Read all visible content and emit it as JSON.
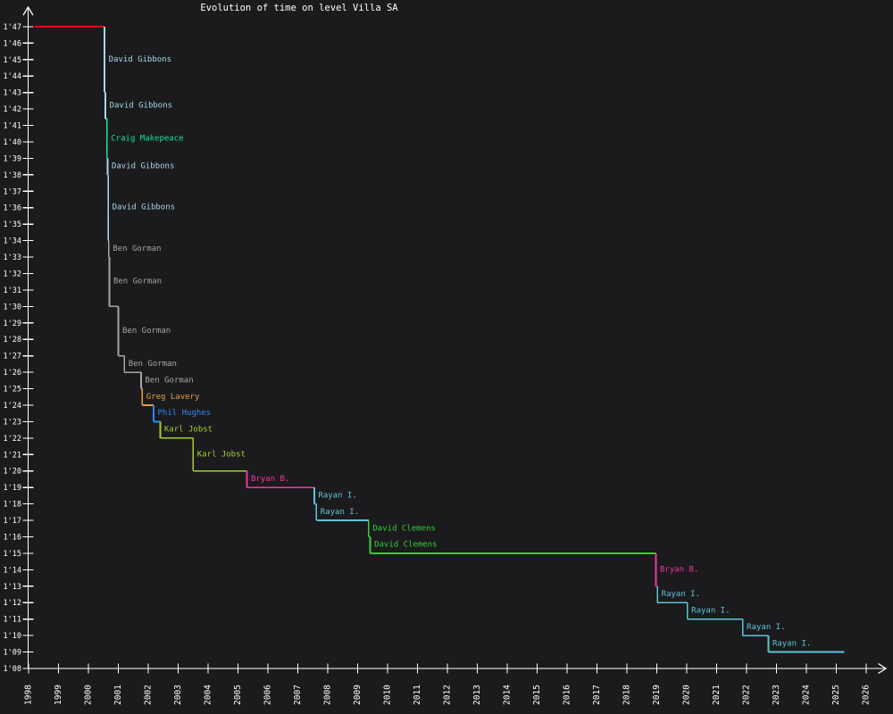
{
  "colors": {
    "background": "#1b1b1d",
    "axis": "#ffffff",
    "title": "#ffffff"
  },
  "chart_data": {
    "type": "line",
    "subtype": "step-record-progression",
    "title": "Evolution of time on level Villa SA",
    "legend": "none",
    "grid": false,
    "x_axis": {
      "label": "",
      "ticks": [
        1998,
        1999,
        2000,
        2001,
        2002,
        2003,
        2004,
        2005,
        2006,
        2007,
        2008,
        2009,
        2010,
        2011,
        2012,
        2013,
        2014,
        2015,
        2016,
        2017,
        2018,
        2019,
        2020,
        2021,
        2022,
        2023,
        2024,
        2025,
        2026
      ],
      "range": [
        1998,
        2026.7
      ]
    },
    "y_axis": {
      "label": "",
      "tick_labels": [
        "1'08",
        "1'09",
        "1'10",
        "1'11",
        "1'12",
        "1'13",
        "1'14",
        "1'15",
        "1'16",
        "1'17",
        "1'18",
        "1'19",
        "1'20",
        "1'21",
        "1'22",
        "1'23",
        "1'24",
        "1'25",
        "1'26",
        "1'27",
        "1'28",
        "1'29",
        "1'30",
        "1'31",
        "1'32",
        "1'33",
        "1'34",
        "1'35",
        "1'36",
        "1'37",
        "1'38",
        "1'39",
        "1'40",
        "1'41",
        "1'42",
        "1'43",
        "1'44",
        "1'45",
        "1'46",
        "1'47"
      ],
      "tick_seconds_start": 68,
      "range_seconds": [
        68,
        107
      ]
    },
    "line_end_year": 2025.27,
    "records": [
      {
        "holder": null,
        "time": "1'47",
        "seconds": 107,
        "year": 1998.21,
        "color": "#ff1414"
      },
      {
        "holder": "David Gibbons",
        "time": "1'43",
        "seconds": 103,
        "year": 2000.54,
        "color": "#a8d8e8"
      },
      {
        "holder": "David Gibbons",
        "time": "1'41",
        "seconds": 101.4,
        "year": 2000.57,
        "color": "#a8d8e8"
      },
      {
        "holder": "Craig Makepeace",
        "time": "1'39",
        "seconds": 99,
        "year": 2000.62,
        "color": "#17e3a1"
      },
      {
        "holder": "David Gibbons",
        "time": "1'38",
        "seconds": 98,
        "year": 2000.64,
        "color": "#a8d8e8"
      },
      {
        "holder": "David Gibbons",
        "time": "1'34",
        "seconds": 94,
        "year": 2000.66,
        "color": "#a8d8e8"
      },
      {
        "holder": "Ben Gorman",
        "time": "1'33",
        "seconds": 93,
        "year": 2000.68,
        "color": "#a6a6a6"
      },
      {
        "holder": "Ben Gorman",
        "time": "1'30",
        "seconds": 90,
        "year": 2000.7,
        "color": "#a6a6a6"
      },
      {
        "holder": "Ben Gorman",
        "time": "1'27",
        "seconds": 87,
        "year": 2001.0,
        "color": "#a6a6a6"
      },
      {
        "holder": "Ben Gorman",
        "time": "1'26",
        "seconds": 86,
        "year": 2001.2,
        "color": "#a6a6a6"
      },
      {
        "holder": "Ben Gorman",
        "time": "1'25",
        "seconds": 85,
        "year": 2001.76,
        "color": "#a6a6a6"
      },
      {
        "holder": "Greg Lavery",
        "time": "1'24",
        "seconds": 84,
        "year": 2001.8,
        "color": "#e3a04c"
      },
      {
        "holder": "Phil Hughes",
        "time": "1'23",
        "seconds": 83,
        "year": 2002.18,
        "color": "#2f86f2"
      },
      {
        "holder": "Karl Jobst",
        "time": "1'22",
        "seconds": 82,
        "year": 2002.4,
        "color": "#a5cf2d"
      },
      {
        "holder": "Karl Jobst",
        "time": "1'20",
        "seconds": 80,
        "year": 2003.5,
        "color": "#a5cf2d"
      },
      {
        "holder": "Bryan B.",
        "time": "1'19",
        "seconds": 79,
        "year": 2005.3,
        "color": "#f5359f"
      },
      {
        "holder": "Rayan I.",
        "time": "1'18",
        "seconds": 78,
        "year": 2007.55,
        "color": "#5cc4d8"
      },
      {
        "holder": "Rayan I.",
        "time": "1'17",
        "seconds": 77,
        "year": 2007.62,
        "color": "#5cc4d8"
      },
      {
        "holder": "David Clemens",
        "time": "1'16",
        "seconds": 76,
        "year": 2009.37,
        "color": "#35cf3a"
      },
      {
        "holder": "David Clemens",
        "time": "1'15",
        "seconds": 75,
        "year": 2009.42,
        "color": "#35cf3a"
      },
      {
        "holder": "Bryan B.",
        "time": "1'13",
        "seconds": 73,
        "year": 2018.97,
        "color": "#f5359f"
      },
      {
        "holder": "Rayan I.",
        "time": "1'12",
        "seconds": 72,
        "year": 2019.02,
        "color": "#5cc4d8"
      },
      {
        "holder": "Rayan I.",
        "time": "1'11",
        "seconds": 71,
        "year": 2020.02,
        "color": "#5cc4d8"
      },
      {
        "holder": "Rayan I.",
        "time": "1'10",
        "seconds": 70,
        "year": 2021.87,
        "color": "#5cc4d8"
      },
      {
        "holder": "Rayan I.",
        "time": "1'09",
        "seconds": 69,
        "year": 2022.73,
        "color": "#5cc4d8"
      }
    ]
  }
}
